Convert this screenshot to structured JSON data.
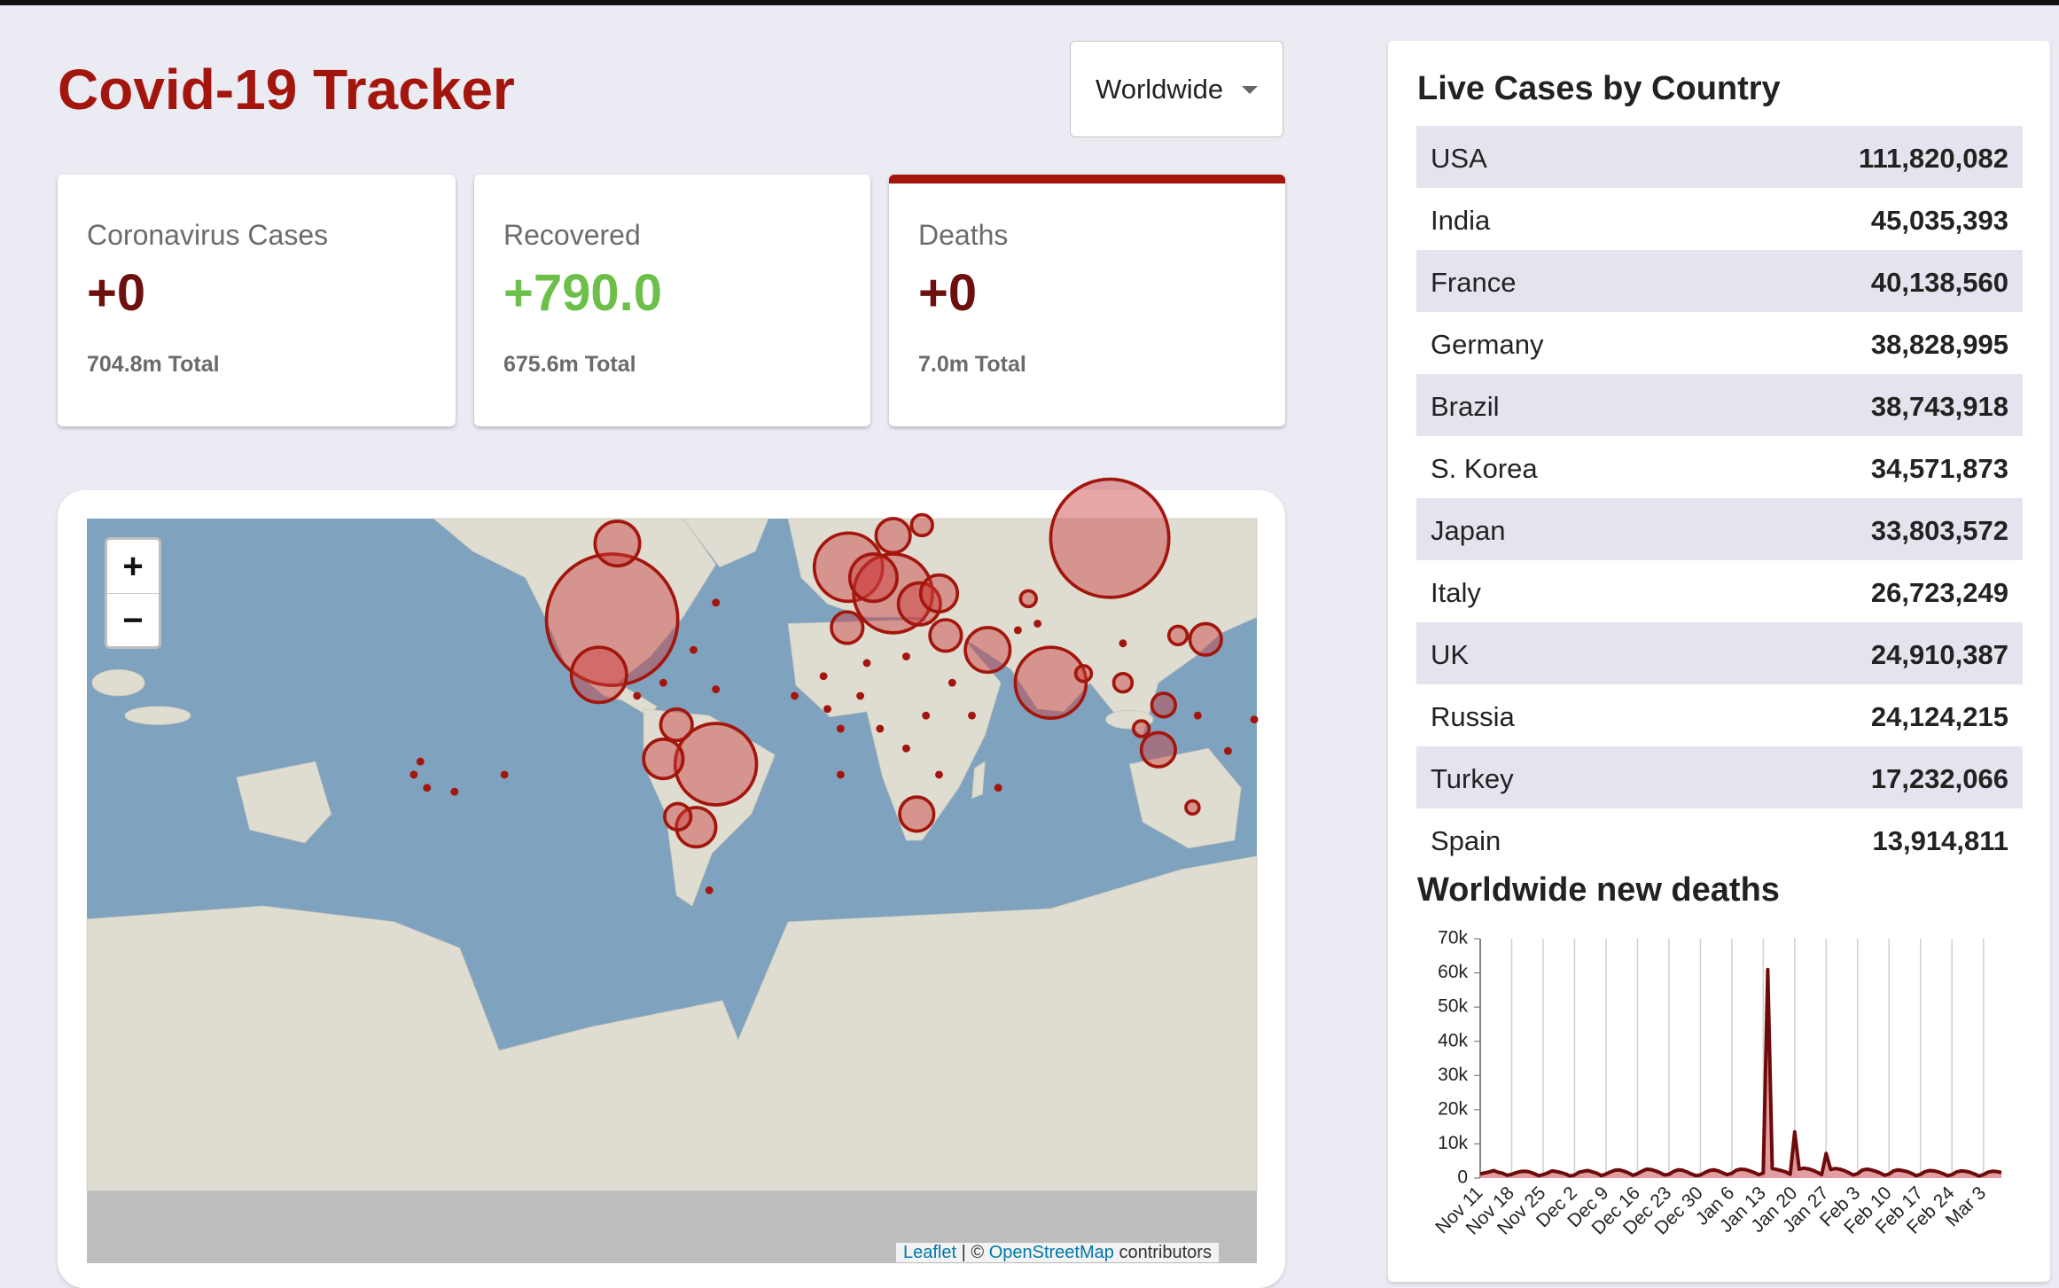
{
  "header": {
    "title": "Covid-19 Tracker",
    "dropdown": "Worldwide"
  },
  "stats": [
    {
      "label": "Coronavirus Cases",
      "value": "+0",
      "total": "704.8m Total"
    },
    {
      "label": "Recovered",
      "value": "+790.0",
      "total": "675.6m Total"
    },
    {
      "label": "Deaths",
      "value": "+0",
      "total": "7.0m Total"
    }
  ],
  "map": {
    "zoom_in": "+",
    "zoom_out": "−",
    "attribution_leaflet": "Leaflet",
    "attribution_separator": "| ©",
    "attribution_osm": "OpenStreetMap",
    "attribution_rest": "contributors"
  },
  "table": {
    "title": "Live Cases by Country",
    "rows": [
      [
        "USA",
        "111,820,082"
      ],
      [
        "India",
        "45,035,393"
      ],
      [
        "France",
        "40,138,560"
      ],
      [
        "Germany",
        "38,828,995"
      ],
      [
        "Brazil",
        "38,743,918"
      ],
      [
        "S. Korea",
        "34,571,873"
      ],
      [
        "Japan",
        "33,803,572"
      ],
      [
        "Italy",
        "26,723,249"
      ],
      [
        "UK",
        "24,910,387"
      ],
      [
        "Russia",
        "24,124,215"
      ],
      [
        "Turkey",
        "17,232,066"
      ],
      [
        "Spain",
        "13,914,811"
      ]
    ]
  },
  "chart_data": {
    "type": "line",
    "title": "Worldwide new deaths",
    "color": "#6d0a0a",
    "fill": "#d9848a",
    "grid": "x",
    "categories": [
      "Nov 11",
      null,
      null,
      null,
      null,
      null,
      null,
      "Nov 18",
      null,
      null,
      null,
      null,
      null,
      null,
      "Nov 25",
      null,
      null,
      null,
      null,
      null,
      null,
      "Dec 2",
      null,
      null,
      null,
      null,
      null,
      null,
      "Dec 9",
      null,
      null,
      null,
      null,
      null,
      null,
      "Dec 16",
      null,
      null,
      null,
      null,
      null,
      null,
      "Dec 23",
      null,
      null,
      null,
      null,
      null,
      null,
      "Dec 30",
      null,
      null,
      null,
      null,
      null,
      null,
      "Jan 6",
      null,
      null,
      null,
      null,
      null,
      null,
      "Jan 13",
      null,
      null,
      null,
      null,
      null,
      null,
      "Jan 20",
      null,
      null,
      null,
      null,
      null,
      null,
      "Jan 27",
      null,
      null,
      null,
      null,
      null,
      null,
      "Feb 3",
      null,
      null,
      null,
      null,
      null,
      null,
      "Feb 10",
      null,
      null,
      null,
      null,
      null,
      null,
      "Feb 17",
      null,
      null,
      null,
      null,
      null,
      null,
      "Feb 24",
      null,
      null,
      null,
      null,
      null,
      null,
      "Mar 3",
      null,
      null,
      null,
      null
    ],
    "values": [
      1200,
      1500,
      1800,
      2200,
      1700,
      1400,
      800,
      1100,
      1600,
      1900,
      2000,
      1800,
      1300,
      700,
      1000,
      1500,
      2100,
      1900,
      1600,
      1200,
      600,
      900,
      1700,
      2000,
      2200,
      1800,
      1400,
      700,
      1200,
      1800,
      2300,
      2400,
      2000,
      1500,
      800,
      1300,
      2000,
      2600,
      2500,
      2100,
      1600,
      900,
      1100,
      1900,
      2400,
      2300,
      1800,
      1200,
      700,
      900,
      1600,
      2200,
      2400,
      2100,
      1500,
      1000,
      1400,
      2300,
      2600,
      2500,
      2100,
      1600,
      1000,
      1500,
      61000,
      2800,
      2500,
      2200,
      1800,
      1100,
      13500,
      2600,
      2900,
      2700,
      2300,
      1700,
      1000,
      7200,
      2500,
      2800,
      2600,
      2200,
      1600,
      900,
      1300,
      2300,
      2600,
      2400,
      2000,
      1500,
      800,
      1200,
      2100,
      2400,
      2200,
      1900,
      1400,
      700,
      1100,
      1900,
      2200,
      2100,
      1800,
      1300,
      700,
      1000,
      1800,
      2100,
      2000,
      1700,
      1200,
      600,
      1000,
      1700,
      2000,
      1900,
      1600
    ],
    "ylim": [
      0,
      70000
    ],
    "yticks": [
      0,
      {
        "value": 10000,
        "label": "10k"
      },
      {
        "value": 20000,
        "label": "20k"
      },
      {
        "value": 30000,
        "label": "30k"
      },
      {
        "value": 40000,
        "label": "40k"
      },
      {
        "value": 50000,
        "label": "50k"
      },
      {
        "value": 60000,
        "label": "60k"
      },
      {
        "value": 70000,
        "label": "70k"
      }
    ]
  }
}
